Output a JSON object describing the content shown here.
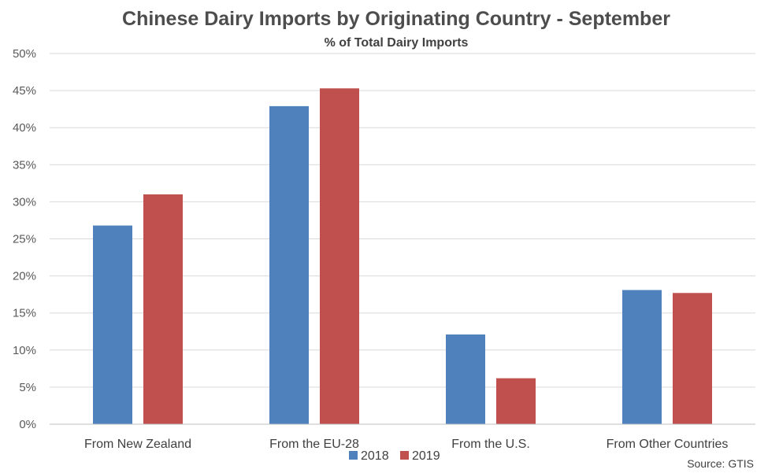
{
  "chart_data": {
    "type": "bar",
    "title": "Chinese Dairy Imports by Originating Country - September",
    "subtitle": "% of Total Dairy Imports",
    "xlabel": "",
    "ylabel": "",
    "categories": [
      "From New Zealand",
      "From the EU-28",
      "From the U.S.",
      "From Other Countries"
    ],
    "series": [
      {
        "name": "2018",
        "color": "#4f81bd",
        "values": [
          26.8,
          42.9,
          12.1,
          18.1
        ]
      },
      {
        "name": "2019",
        "color": "#c0504d",
        "values": [
          31.0,
          45.3,
          6.2,
          17.7
        ]
      }
    ],
    "ylim": [
      0,
      50
    ],
    "yticks": [
      0,
      5,
      10,
      15,
      20,
      25,
      30,
      35,
      40,
      45,
      50
    ],
    "ytick_labels": [
      "0%",
      "5%",
      "10%",
      "15%",
      "20%",
      "25%",
      "30%",
      "35%",
      "40%",
      "45%",
      "50%"
    ],
    "grid": true,
    "legend_position": "bottom-center",
    "source": "Source: GTIS"
  }
}
